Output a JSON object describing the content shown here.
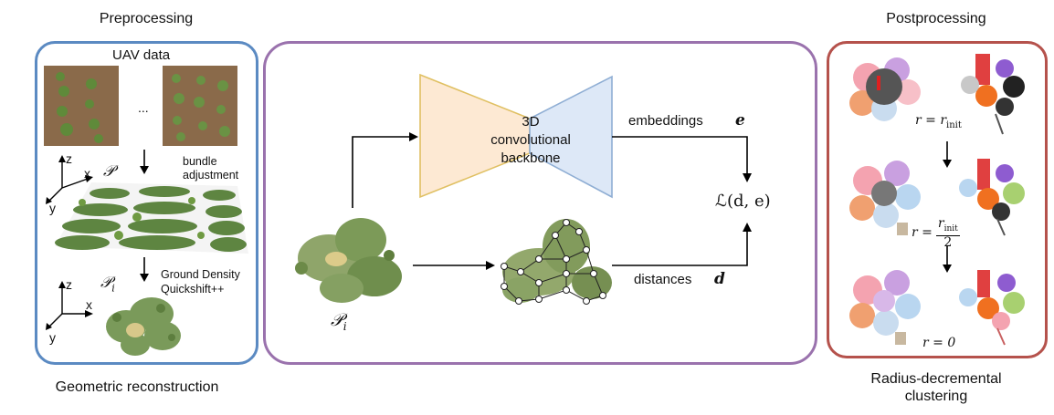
{
  "preprocessing": {
    "title": "Preprocessing",
    "uav_label": "UAV data",
    "ellipsis": "...",
    "bundle_adjustment": "bundle adjustment",
    "point_cloud_symbol": "𝒫",
    "instance_symbol": "𝒫",
    "instance_subscript": "i",
    "ground_density": "Ground Density",
    "quickshift": "Quickshift++",
    "axis_z": "z",
    "axis_x": "x",
    "axis_y": "y",
    "footer": "Geometric reconstruction",
    "border_color": "#5b8ac2"
  },
  "network": {
    "backbone_line1": "3D",
    "backbone_line2": "convolutional",
    "backbone_line3": "backbone",
    "embeddings_label": "embeddings",
    "embeddings_symbol": "e",
    "distances_label": "distances",
    "distances_symbol": "d",
    "loss_label": "ℒ(d, e)",
    "input_symbol": "𝒫",
    "input_subscript": "i",
    "border_color": "#9a72ad",
    "encoder_color": "#fde9d3",
    "decoder_color": "#dde8f7"
  },
  "postprocessing": {
    "title": "Postprocessing",
    "r_init_eq": "r = r",
    "r_init_sub": "init",
    "r_half_prefix": "r =",
    "r_half_num": "r",
    "r_half_num_sub": "init",
    "r_half_den": "2",
    "r_zero_eq": "r = 0",
    "footer_line1": "Radius-decremental",
    "footer_line2": "clustering",
    "border_color": "#b5524c"
  }
}
